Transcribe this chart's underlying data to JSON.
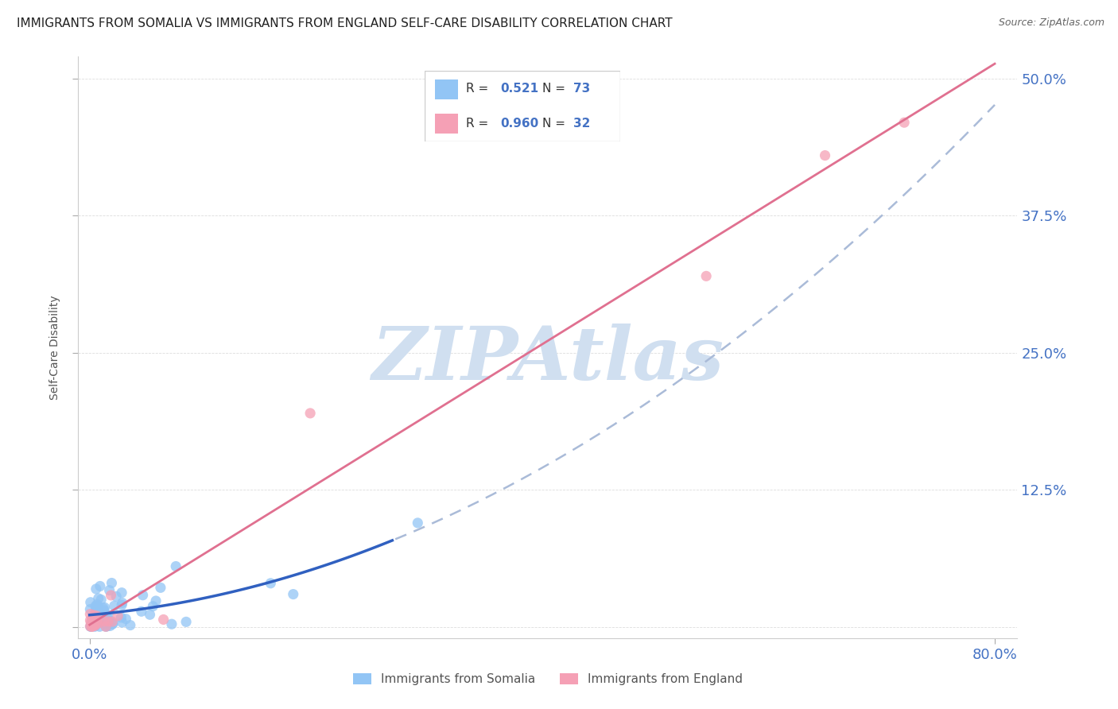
{
  "title": "IMMIGRANTS FROM SOMALIA VS IMMIGRANTS FROM ENGLAND SELF-CARE DISABILITY CORRELATION CHART",
  "source": "Source: ZipAtlas.com",
  "ylabel": "Self-Care Disability",
  "xlim": [
    -0.01,
    0.82
  ],
  "ylim": [
    -0.01,
    0.52
  ],
  "somalia_R": 0.521,
  "somalia_N": 73,
  "england_R": 0.96,
  "england_N": 32,
  "somalia_color": "#92C5F5",
  "england_color": "#F5A0B5",
  "somalia_line_color": "#3060C0",
  "somalia_dash_color": "#AABBD8",
  "england_line_color": "#E07090",
  "watermark_text": "ZIPAtlas",
  "watermark_color": "#D0DFF0",
  "bg_color": "#FFFFFF",
  "grid_color": "#DDDDDD",
  "tick_color": "#4472C4",
  "title_color": "#222222",
  "ylabel_color": "#555555",
  "source_color": "#666666",
  "legend_border_color": "#CCCCCC",
  "bottom_legend_color": "#555555"
}
